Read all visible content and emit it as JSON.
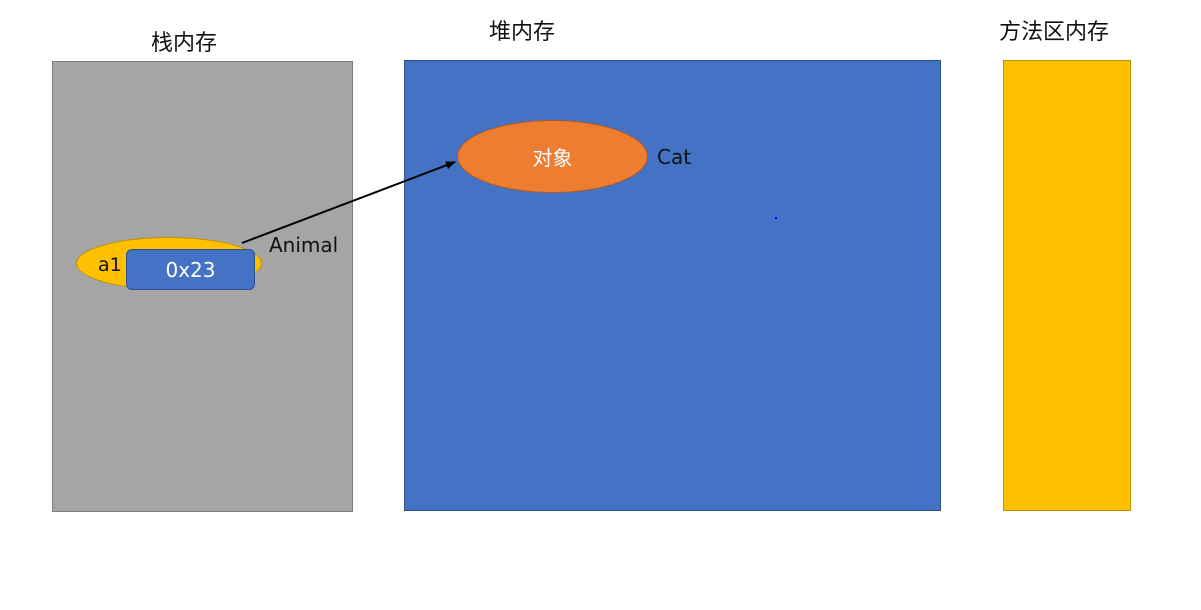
{
  "regions": {
    "stack": {
      "title": "栈内存"
    },
    "heap": {
      "title": "堆内存"
    },
    "method_area": {
      "title": "方法区内存"
    }
  },
  "stack_variable": {
    "name": "a1",
    "reference": "0x23",
    "declared_type": "Animal"
  },
  "heap_object": {
    "label": "对象",
    "runtime_class": "Cat"
  },
  "colors": {
    "stack_fill": "#a5a5a5",
    "heap_fill": "#4472c4",
    "method_fill": "#ffc000",
    "variable_ellipse": "#ffc000",
    "reference_box": "#4472c4",
    "object_ellipse": "#ed7d31",
    "object_border": "#ae5a21",
    "arrow": "#000000",
    "white_text": "#ffffff"
  }
}
